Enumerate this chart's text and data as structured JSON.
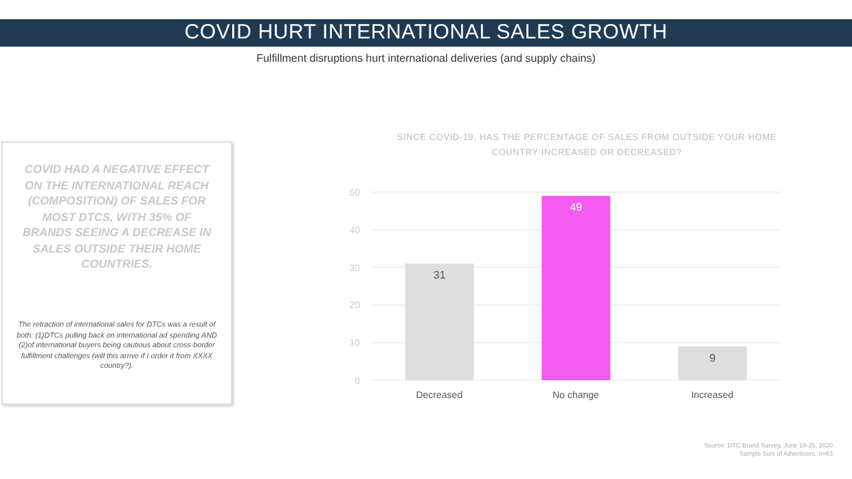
{
  "chart_data": {
    "type": "bar",
    "title": "COVID HURT INTERNATIONAL SALES GROWTH",
    "subtitle": "Fulfillment disruptions hurt international deliveries (and supply chains)",
    "annotations": [
      "SINCE COVID-19, HAS THE PERCENTAGE OF SALES FROM OUTSIDE YOUR HOME COUNTRY INCREASED OR DECREASED?",
      "COVID HAD A NEGATIVE EFFECT ON THE INTERNATIONAL REACH (COMPOSITION) OF SALES FOR MOST DTCS, WITH 35% OF BRANDS SEEING A DECREASE IN SALES OUTSIDE THEIR HOME COUNTRIES.",
      "The retraction of international sales for DTCs was a result of both: (1)DTCs pulling back on international ad spending AND (2)of international buyers being cautious about cross-border fulfillment challenges (will this arrive if I order it from XXXX country?).",
      "Source: DTC Brand Survey, June 19-25, 2020",
      "Sample Size of Advertisers: n=83"
    ],
    "categories": [
      "Decreased",
      "No change",
      "Increased"
    ],
    "values": [
      31,
      49,
      9
    ],
    "colors": [
      "#dedede",
      "#f25cf0",
      "#dedede"
    ],
    "ylim": [
      0,
      50
    ],
    "yticks": [
      0,
      10,
      20,
      30,
      40,
      50
    ],
    "grid": "y",
    "data_labels": true,
    "legend": false
  }
}
